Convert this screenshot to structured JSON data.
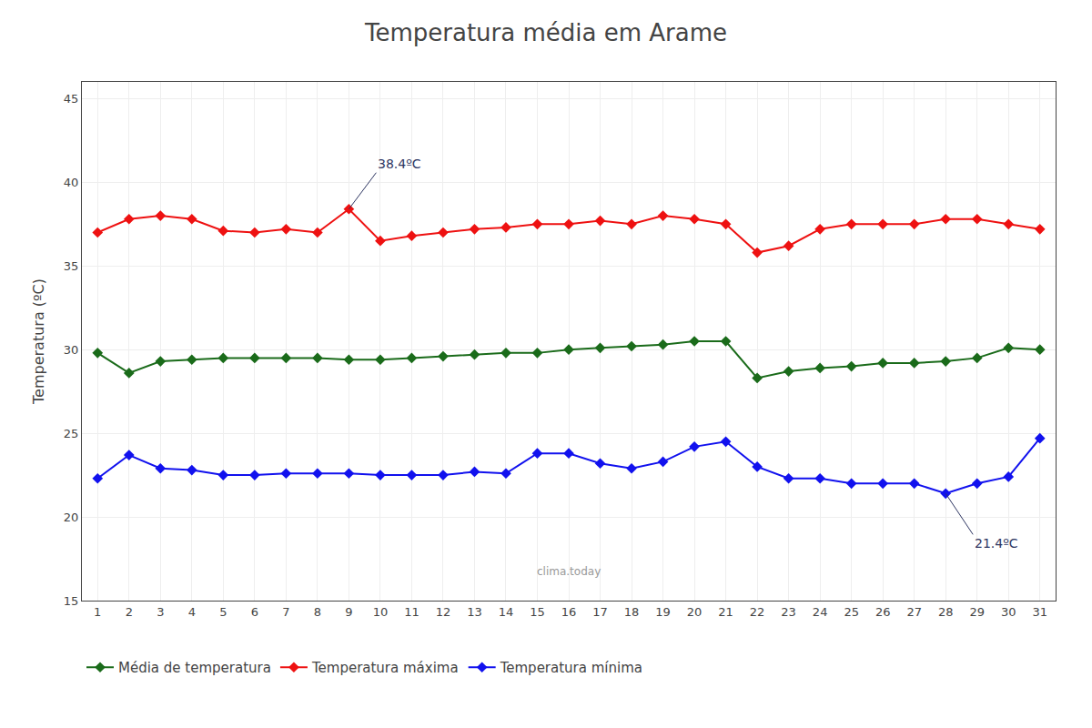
{
  "chart_data": {
    "type": "line",
    "title": "Temperatura média em Arame",
    "y_label": "Temperatura (ºC)",
    "x": [
      1,
      2,
      3,
      4,
      5,
      6,
      7,
      8,
      9,
      10,
      11,
      12,
      13,
      14,
      15,
      16,
      17,
      18,
      19,
      20,
      21,
      22,
      23,
      24,
      25,
      26,
      27,
      28,
      29,
      30,
      31
    ],
    "series": [
      {
        "name": "Média de temperatura",
        "color": "#1a6b1a",
        "marker": "diamond",
        "values": [
          29.8,
          28.6,
          29.3,
          29.4,
          29.5,
          29.5,
          29.5,
          29.5,
          29.4,
          29.4,
          29.5,
          29.6,
          29.7,
          29.8,
          29.8,
          30.0,
          30.1,
          30.2,
          30.3,
          30.5,
          30.5,
          28.3,
          28.7,
          28.9,
          29.0,
          29.2,
          29.2,
          29.3,
          29.5,
          30.1,
          30.0
        ]
      },
      {
        "name": "Temperatura máxima",
        "color": "#ee1111",
        "marker": "diamond",
        "values": [
          37.0,
          37.8,
          38.0,
          37.8,
          37.1,
          37.0,
          37.2,
          37.0,
          38.4,
          36.5,
          36.8,
          37.0,
          37.2,
          37.3,
          37.5,
          37.5,
          37.7,
          37.5,
          38.0,
          37.8,
          37.5,
          35.8,
          36.2,
          37.2,
          37.5,
          37.5,
          37.5,
          37.8,
          37.8,
          37.5,
          37.2
        ]
      },
      {
        "name": "Temperatura mínima",
        "color": "#1111ee",
        "marker": "diamond",
        "values": [
          22.3,
          23.7,
          22.9,
          22.8,
          22.5,
          22.5,
          22.6,
          22.6,
          22.6,
          22.5,
          22.5,
          22.5,
          22.7,
          22.6,
          23.8,
          23.8,
          23.2,
          22.9,
          23.3,
          24.2,
          24.5,
          23.0,
          22.3,
          22.3,
          22.0,
          22.0,
          22.0,
          21.4,
          22.0,
          22.4,
          24.7
        ]
      }
    ],
    "xlim": [
      0.5,
      31.5
    ],
    "xticks": [
      1,
      2,
      3,
      4,
      5,
      6,
      7,
      8,
      9,
      10,
      11,
      12,
      13,
      14,
      15,
      16,
      17,
      18,
      19,
      20,
      21,
      22,
      23,
      24,
      25,
      26,
      27,
      28,
      29,
      30,
      31
    ],
    "ylim": [
      15,
      46
    ],
    "yticks": [
      15,
      20,
      25,
      30,
      35,
      40,
      45
    ],
    "grid": true,
    "legend": "bottom",
    "annotations": [
      {
        "text": "38.4ºC",
        "x": 9,
        "y": 38.4
      },
      {
        "text": "21.4ºC",
        "x": 28,
        "y": 21.4
      },
      {
        "text": "clima.today"
      }
    ]
  }
}
